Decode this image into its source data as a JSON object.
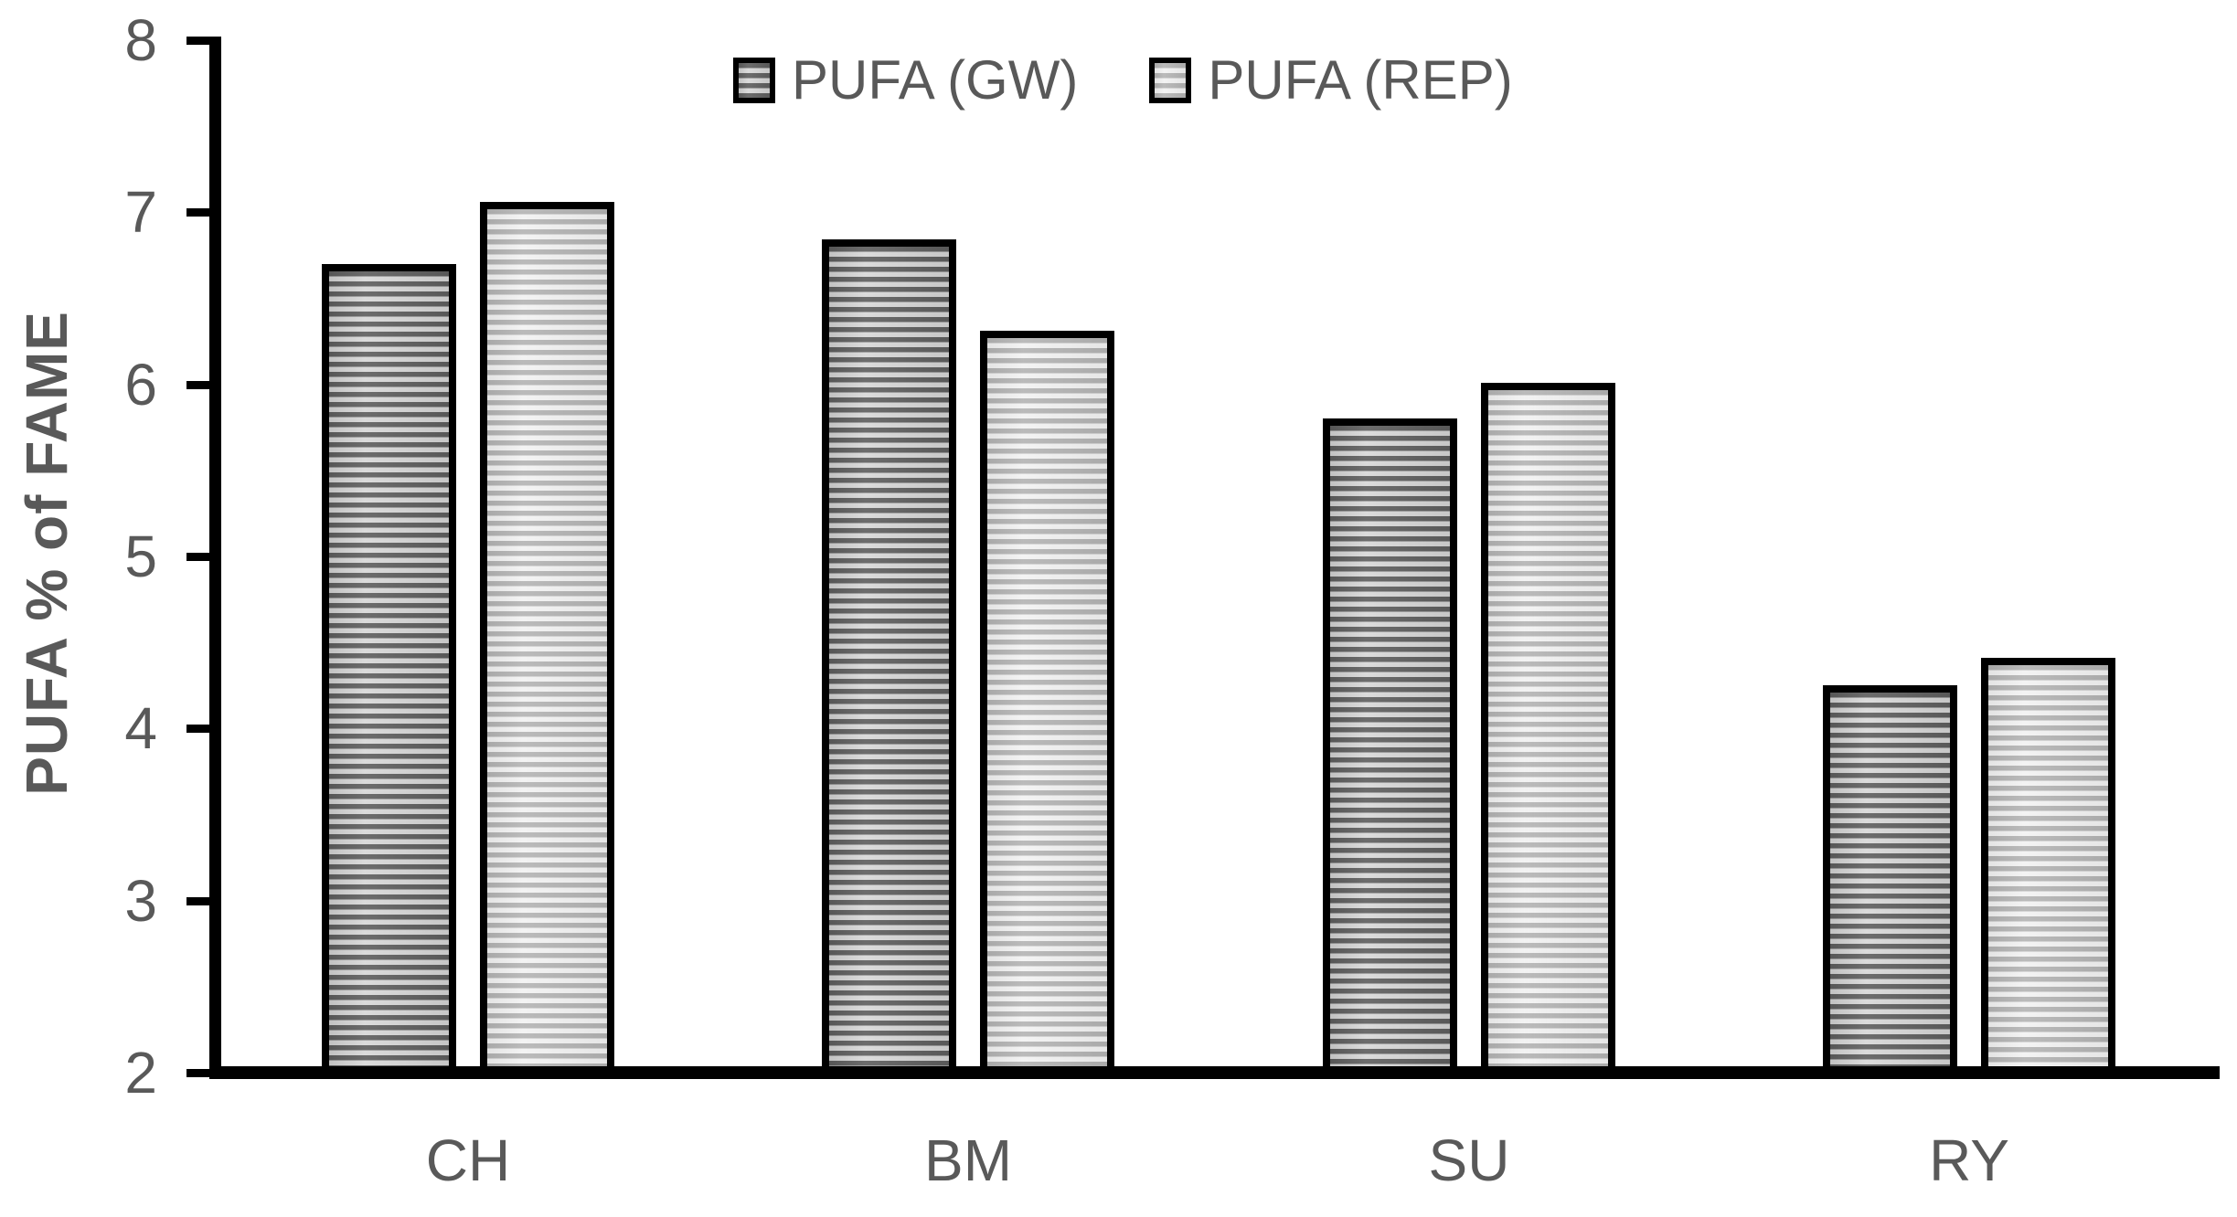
{
  "chart_data": {
    "type": "bar",
    "title": "",
    "ylabel": "PUFA % of FAME",
    "xlabel": "",
    "categories": [
      "CH",
      "BM",
      "SU",
      "RY"
    ],
    "series": [
      {
        "name": "PUFA (GW)",
        "values": [
          6.7,
          6.84,
          5.8,
          4.25
        ]
      },
      {
        "name": "PUFA (REP)",
        "values": [
          7.06,
          6.31,
          6.01,
          4.41
        ]
      }
    ],
    "ylim": [
      2,
      8
    ],
    "yticks": [
      "8",
      "7",
      "6",
      "5",
      "4",
      "3",
      "2"
    ],
    "ytick_values": [
      8,
      7,
      6,
      5,
      4,
      3,
      2
    ],
    "grid": false,
    "legend_position": "top-center",
    "bar_pattern": "horizontal-stripes"
  },
  "colors": {
    "text": "#595959",
    "axis": "#000000",
    "gw_stripe_dark": "#606060",
    "gw_stripe_light": "#d8d8d8",
    "rep_stripe_dark": "#b3b3b3",
    "rep_stripe_light": "#f2f2f2",
    "background": "#ffffff"
  }
}
